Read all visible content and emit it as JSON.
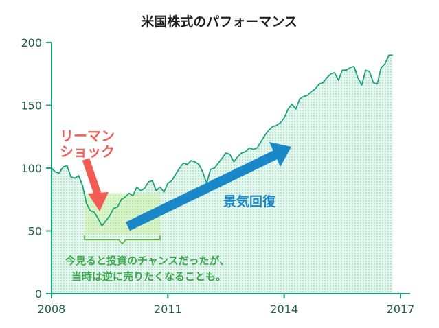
{
  "title": "米国株式のパフォーマンス",
  "colors": {
    "line": "#1aa37a",
    "fill": "#bfeedd",
    "axis": "#1aa37a",
    "green_box": "#c8f0b0",
    "green_text": "#3aa84a",
    "red": "#f25c54",
    "blue": "#1a88c8",
    "title": "#222222"
  },
  "annotations": {
    "lehman_line1": "リーマン",
    "lehman_line2": "ショック",
    "recovery": "景気回復",
    "note_line1": "今見ると投資のチャンスだったが、",
    "note_line2": "当時は逆に売りたくなることも。"
  },
  "chart_data": {
    "type": "area",
    "title": "米国株式のパフォーマンス",
    "xlabel": "",
    "ylabel": "",
    "xlim": [
      2008,
      2017
    ],
    "ylim": [
      0,
      200
    ],
    "x_ticks": [
      2008,
      2011,
      2014,
      2017
    ],
    "y_ticks": [
      0,
      50,
      100,
      150,
      200
    ],
    "grid": false,
    "series": [
      {
        "x": [
          2008.0,
          2008.1,
          2008.2,
          2008.3,
          2008.4,
          2008.5,
          2008.6,
          2008.7,
          2008.8,
          2008.9,
          2009.0,
          2009.1,
          2009.2,
          2009.3,
          2009.4,
          2009.5,
          2009.6,
          2009.7,
          2009.8,
          2009.9,
          2010.0,
          2010.1,
          2010.2,
          2010.3,
          2010.4,
          2010.5,
          2010.6,
          2010.7,
          2010.8,
          2010.9,
          2011.0,
          2011.1,
          2011.2,
          2011.3,
          2011.4,
          2011.5,
          2011.6,
          2011.7,
          2011.8,
          2011.9,
          2012.0,
          2012.1,
          2012.2,
          2012.3,
          2012.4,
          2012.5,
          2012.6,
          2012.7,
          2012.8,
          2012.9,
          2013.0,
          2013.1,
          2013.2,
          2013.3,
          2013.4,
          2013.5,
          2013.6,
          2013.7,
          2013.8,
          2013.9,
          2014.0,
          2014.1,
          2014.2,
          2014.3,
          2014.4,
          2014.5,
          2014.6,
          2014.7,
          2014.8,
          2014.9,
          2015.0,
          2015.1,
          2015.2,
          2015.3,
          2015.4,
          2015.5,
          2015.6,
          2015.7,
          2015.8,
          2015.9,
          2016.0,
          2016.1,
          2016.2,
          2016.3,
          2016.4,
          2016.5,
          2016.6,
          2016.7,
          2016.8
        ],
        "values": [
          100,
          97,
          96,
          101,
          102,
          93,
          92,
          94,
          86,
          72,
          66,
          65,
          60,
          54,
          58,
          62,
          68,
          69,
          75,
          77,
          80,
          78,
          85,
          82,
          84,
          89,
          90,
          82,
          85,
          81,
          88,
          90,
          95,
          100,
          104,
          103,
          106,
          105,
          103,
          97,
          88,
          99,
          100,
          104,
          108,
          112,
          111,
          105,
          109,
          112,
          113,
          116,
          115,
          116,
          121,
          126,
          130,
          133,
          134,
          136,
          140,
          147,
          151,
          147,
          155,
          157,
          158,
          161,
          163,
          167,
          168,
          172,
          175,
          176,
          170,
          178,
          178,
          180,
          181,
          172,
          166,
          178,
          177,
          168,
          167,
          180,
          183,
          190,
          190
        ]
      }
    ]
  }
}
